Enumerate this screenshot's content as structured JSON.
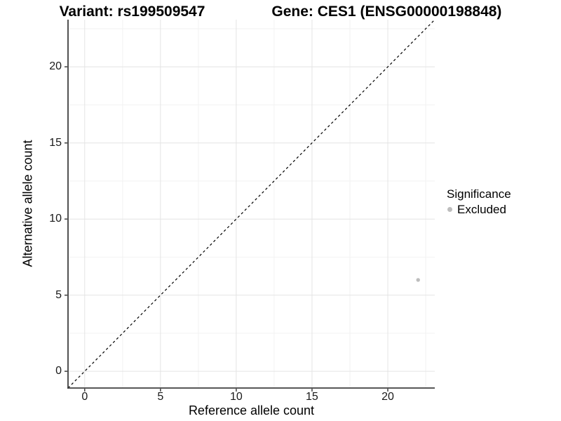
{
  "title": {
    "variant_part": "Variant: rs199509547",
    "gene_part": "Gene: CES1 (ENSG00000198848)"
  },
  "axes": {
    "x_label": "Reference allele count",
    "y_label": "Alternative allele count"
  },
  "legend": {
    "title": "Significance",
    "items": [
      {
        "label": "Excluded",
        "color": "#bdbdbd"
      }
    ]
  },
  "colors": {
    "point_gray": "#bdbdbd",
    "axis_line": "#3f3f3f",
    "tick_mark": "#3f3f3f",
    "grid_major": "#e4e4e4",
    "grid_minor": "#f2f2f2",
    "reference_line": "#000000"
  },
  "chart_data": {
    "type": "scatter",
    "title": "Variant: rs199509547    Gene: CES1 (ENSG00000198848)",
    "xlabel": "Reference allele count",
    "ylabel": "Alternative allele count",
    "xlim": [
      -1.1,
      23.1
    ],
    "ylim": [
      -1.1,
      23.1
    ],
    "x_ticks": [
      0,
      5,
      10,
      15,
      20
    ],
    "y_ticks": [
      0,
      5,
      10,
      15,
      20
    ],
    "x_minor_ticks": [
      2.5,
      7.5,
      12.5,
      17.5,
      22.5
    ],
    "y_minor_ticks": [
      2.5,
      7.5,
      12.5,
      17.5,
      22.5
    ],
    "grid": true,
    "legend_position": "right",
    "series": [
      {
        "name": "Excluded",
        "color": "#bdbdbd",
        "points": [
          {
            "x": 22,
            "y": 6
          }
        ]
      }
    ],
    "reference_line": {
      "type": "identity",
      "equation": "y = x",
      "style": "dashed",
      "color": "#000000"
    }
  }
}
